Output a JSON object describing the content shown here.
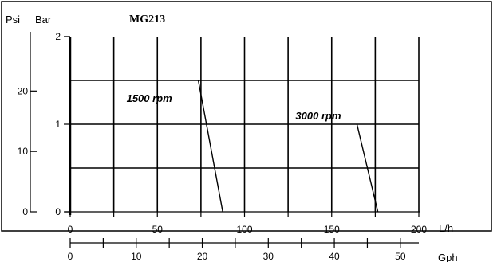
{
  "chart_data": {
    "type": "line",
    "title": "MG213",
    "units": {
      "psi": "Psi",
      "bar": "Bar",
      "lh": "L/h",
      "gph": "Gph"
    },
    "x_lh": {
      "ticks": [
        "0",
        "50",
        "100",
        "150",
        "200"
      ],
      "tick_values": [
        0,
        50,
        100,
        150,
        200
      ],
      "range": [
        0,
        200
      ]
    },
    "x_gph": {
      "ticks": [
        "0",
        "10",
        "20",
        "30",
        "40",
        "50"
      ],
      "tick_values": [
        0,
        10,
        20,
        30,
        40,
        50
      ]
    },
    "y_bar": {
      "ticks": [
        "0",
        "1",
        "2"
      ],
      "tick_values": [
        0,
        1,
        2
      ],
      "range": [
        0,
        2
      ]
    },
    "y_psi": {
      "ticks": [
        "0",
        "10",
        "20"
      ],
      "tick_values": [
        0,
        10,
        20
      ]
    },
    "grid": true,
    "series": [
      {
        "name": "1500 rpm",
        "points": [
          [
            73.5,
            1.5
          ],
          [
            87.5,
            0
          ]
        ]
      },
      {
        "name": "3000 rpm",
        "points": [
          [
            164.5,
            1.0
          ],
          [
            176.5,
            0
          ]
        ]
      }
    ]
  }
}
